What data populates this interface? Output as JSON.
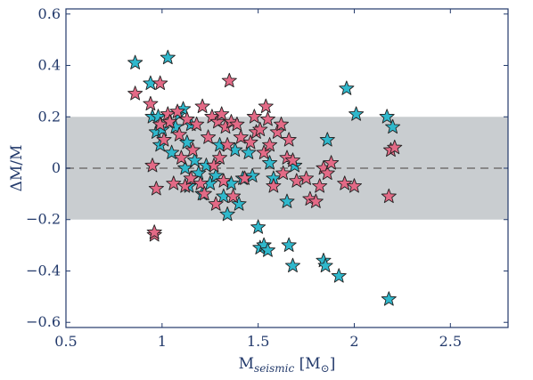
{
  "chart_data": {
    "type": "scatter",
    "title": "",
    "xlabel": "M",
    "xlabel_sub": "seismic",
    "xlabel_unit_open": " [M",
    "xlabel_unit_sub": "⊙",
    "xlabel_unit_close": "]",
    "ylabel": "ΔM/M",
    "xlim": [
      0.5,
      2.8
    ],
    "ylim": [
      -0.62,
      0.62
    ],
    "xticks": [
      0.5,
      1,
      1.5,
      2,
      2.5
    ],
    "xtick_labels": [
      "0.5",
      "1",
      "1.5",
      "2",
      "2.5"
    ],
    "yticks": [
      0.6,
      0.4,
      0.2,
      0,
      -0.2,
      -0.4,
      -0.6
    ],
    "ytick_labels": [
      "0.6",
      "0.4",
      "0.2",
      "0",
      "−0.2",
      "−0.4",
      "−0.6"
    ],
    "band": [
      -0.2,
      0.2
    ],
    "zero_line": 0,
    "colors": {
      "band": "#c9cdd0",
      "zero_line": "#888888",
      "axis": "#233a6b",
      "cyan": "#2fb8cc",
      "pink": "#e36a86",
      "marker_edge": "#222222"
    },
    "series": [
      {
        "color": "cyan",
        "points": [
          [
            0.86,
            0.41
          ],
          [
            1.03,
            0.43
          ],
          [
            0.94,
            0.33
          ],
          [
            0.95,
            0.2
          ],
          [
            0.97,
            0.14
          ],
          [
            0.98,
            0.2
          ],
          [
            0.99,
            0.09
          ],
          [
            1.0,
            0.15
          ],
          [
            1.05,
            0.06
          ],
          [
            1.07,
            0.16
          ],
          [
            1.09,
            0.21
          ],
          [
            1.11,
            0.23
          ],
          [
            1.13,
            0.1
          ],
          [
            1.15,
            0.17
          ],
          [
            1.12,
            0.0
          ],
          [
            1.14,
            -0.07
          ],
          [
            1.17,
            0.03
          ],
          [
            1.19,
            -0.02
          ],
          [
            1.21,
            -0.1
          ],
          [
            1.23,
            0.01
          ],
          [
            1.25,
            -0.06
          ],
          [
            1.28,
            -0.03
          ],
          [
            1.3,
            0.09
          ],
          [
            1.32,
            -0.11
          ],
          [
            1.34,
            -0.18
          ],
          [
            1.36,
            -0.06
          ],
          [
            1.38,
            0.07
          ],
          [
            1.4,
            -0.14
          ],
          [
            1.42,
            -0.04
          ],
          [
            1.45,
            0.06
          ],
          [
            1.47,
            -0.03
          ],
          [
            1.5,
            -0.23
          ],
          [
            1.51,
            -0.31
          ],
          [
            1.53,
            -0.3
          ],
          [
            1.55,
            -0.32
          ],
          [
            1.56,
            0.02
          ],
          [
            1.58,
            -0.04
          ],
          [
            1.65,
            -0.13
          ],
          [
            1.66,
            -0.3
          ],
          [
            1.68,
            -0.38
          ],
          [
            1.69,
            0.01
          ],
          [
            1.84,
            -0.36
          ],
          [
            1.85,
            -0.38
          ],
          [
            1.86,
            0.11
          ],
          [
            1.92,
            -0.42
          ],
          [
            1.96,
            0.31
          ],
          [
            2.01,
            0.21
          ],
          [
            2.17,
            0.2
          ],
          [
            2.2,
            0.16
          ],
          [
            2.18,
            -0.51
          ]
        ]
      },
      {
        "color": "pink",
        "points": [
          [
            0.86,
            0.29
          ],
          [
            0.94,
            0.25
          ],
          [
            0.99,
            0.33
          ],
          [
            0.95,
            0.01
          ],
          [
            0.97,
            -0.08
          ],
          [
            0.99,
            0.17
          ],
          [
            1.01,
            0.11
          ],
          [
            1.03,
            0.21
          ],
          [
            1.04,
            0.18
          ],
          [
            1.06,
            -0.06
          ],
          [
            1.08,
            0.22
          ],
          [
            1.09,
            0.13
          ],
          [
            1.1,
            0.04
          ],
          [
            1.12,
            -0.07
          ],
          [
            1.13,
            0.19
          ],
          [
            1.15,
            -0.04
          ],
          [
            1.16,
            0.07
          ],
          [
            1.18,
            0.17
          ],
          [
            1.2,
            -0.06
          ],
          [
            1.21,
            0.24
          ],
          [
            1.22,
            -0.1
          ],
          [
            1.24,
            0.12
          ],
          [
            1.26,
            0.2
          ],
          [
            1.27,
            0.01
          ],
          [
            1.28,
            -0.14
          ],
          [
            1.29,
            0.18
          ],
          [
            1.3,
            0.04
          ],
          [
            1.31,
            0.21
          ],
          [
            1.32,
            -0.05
          ],
          [
            1.33,
            0.16
          ],
          [
            1.34,
            0.09
          ],
          [
            1.35,
            0.34
          ],
          [
            1.36,
            0.18
          ],
          [
            1.37,
            -0.11
          ],
          [
            1.39,
            0.17
          ],
          [
            1.41,
            0.12
          ],
          [
            1.43,
            -0.04
          ],
          [
            1.46,
            0.1
          ],
          [
            1.48,
            0.2
          ],
          [
            1.49,
            0.14
          ],
          [
            1.51,
            0.15
          ],
          [
            1.53,
            0.06
          ],
          [
            1.54,
            0.24
          ],
          [
            1.55,
            0.19
          ],
          [
            1.56,
            0.09
          ],
          [
            1.58,
            -0.07
          ],
          [
            1.6,
            0.14
          ],
          [
            1.62,
            0.17
          ],
          [
            1.63,
            -0.02
          ],
          [
            1.65,
            0.04
          ],
          [
            1.66,
            0.11
          ],
          [
            1.68,
            0.03
          ],
          [
            1.7,
            -0.05
          ],
          [
            1.75,
            -0.04
          ],
          [
            1.77,
            -0.12
          ],
          [
            1.8,
            -0.13
          ],
          [
            1.82,
            -0.07
          ],
          [
            1.84,
            0.0
          ],
          [
            1.86,
            -0.02
          ],
          [
            1.88,
            0.02
          ],
          [
            1.95,
            -0.06
          ],
          [
            2.0,
            -0.07
          ],
          [
            2.18,
            -0.11
          ],
          [
            2.19,
            0.07
          ],
          [
            2.21,
            0.08
          ],
          [
            0.96,
            -0.26
          ],
          [
            0.96,
            -0.25
          ]
        ]
      }
    ]
  }
}
